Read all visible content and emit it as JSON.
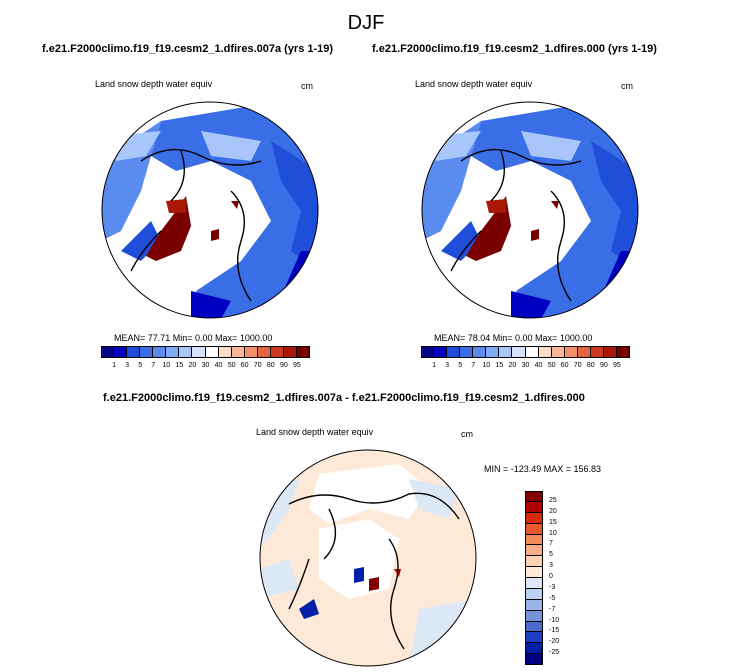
{
  "page": {
    "season": "DJF",
    "case1_title": "f.e21.F2000climo.f19_f19.cesm2_1.dfires.007a (yrs 1-19)",
    "case2_title": "f.e21.F2000climo.f19_f19.cesm2_1.dfires.000 (yrs 1-19)",
    "diff_title": "f.e21.F2000climo.f19_f19.cesm2_1.dfires.007a - f.e21.F2000climo.f19_f19.cesm2_1.dfires.000"
  },
  "chart_data": [
    {
      "type": "heatmap",
      "panel": "case1",
      "title": "Land snow depth water equiv",
      "units": "cm",
      "stats": "MEAN=  77.71  Min=   0.00  Max= 1000.00",
      "mean": 77.71,
      "min": 0.0,
      "max": 1000.0,
      "colorbar": {
        "ticks": [
          "1",
          "3",
          "5",
          "7",
          "10",
          "15",
          "20",
          "30",
          "40",
          "50",
          "60",
          "70",
          "80",
          "90",
          "95"
        ],
        "colors": [
          "#000080",
          "#0000c0",
          "#1f4fd8",
          "#3a6ee6",
          "#5a8cf0",
          "#7ea9f6",
          "#a9c6fa",
          "#d4e3fd",
          "#ffffff",
          "#fcdcc8",
          "#f8b99a",
          "#f2906c",
          "#e46440",
          "#cc3a1e",
          "#a81808",
          "#7a0000"
        ]
      }
    },
    {
      "type": "heatmap",
      "panel": "case2",
      "title": "Land snow depth water equiv",
      "units": "cm",
      "stats": "MEAN=  78.04  Min=   0.00  Max= 1000.00",
      "mean": 78.04,
      "min": 0.0,
      "max": 1000.0,
      "colorbar": {
        "ticks": [
          "1",
          "3",
          "5",
          "7",
          "10",
          "15",
          "20",
          "30",
          "40",
          "50",
          "60",
          "70",
          "80",
          "90",
          "95"
        ],
        "colors": [
          "#000080",
          "#0000c0",
          "#1f4fd8",
          "#3a6ee6",
          "#5a8cf0",
          "#7ea9f6",
          "#a9c6fa",
          "#d4e3fd",
          "#ffffff",
          "#fcdcc8",
          "#f8b99a",
          "#f2906c",
          "#e46440",
          "#cc3a1e",
          "#a81808",
          "#7a0000"
        ]
      }
    },
    {
      "type": "heatmap",
      "panel": "difference",
      "title": "Land snow depth water equiv",
      "units": "cm",
      "stats": "MIN = -123.49 MAX = 156.83",
      "min": -123.49,
      "max": 156.83,
      "colorbar": {
        "ticks": [
          "25",
          "20",
          "15",
          "10",
          "7",
          "5",
          "3",
          "0",
          "-3",
          "-5",
          "-7",
          "-10",
          "-15",
          "-20",
          "-25"
        ],
        "colors": [
          "#800000",
          "#b00000",
          "#d42a0a",
          "#e85a2a",
          "#f48a5a",
          "#f8ae86",
          "#fcd2b4",
          "#fde9d8",
          "#dde8f6",
          "#bcd0f0",
          "#98b4e8",
          "#7494dc",
          "#4a6cd0",
          "#1e40c4",
          "#0020a8",
          "#000080"
        ]
      }
    }
  ]
}
